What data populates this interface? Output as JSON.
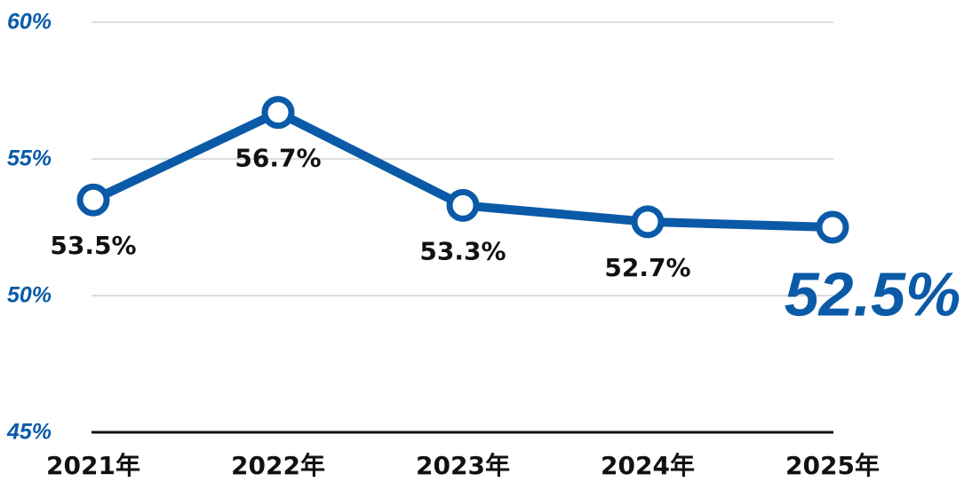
{
  "chart_data": {
    "type": "line",
    "categories": [
      "2021年",
      "2022年",
      "2023年",
      "2024年",
      "2025年"
    ],
    "series": [
      {
        "color": "#0b5aa8",
        "values": [
          53.5,
          56.7,
          53.3,
          52.7,
          52.5
        ],
        "value_labels": [
          "53.5%",
          "56.7%",
          "53.3%",
          "52.7%",
          "52.5%"
        ]
      }
    ],
    "ylim": [
      45,
      60
    ],
    "yticks": [
      {
        "value": 45,
        "label": "45%"
      },
      {
        "value": 50,
        "label": "50%"
      },
      {
        "value": 55,
        "label": "55%"
      },
      {
        "value": 60,
        "label": "60%"
      }
    ],
    "grid": true
  }
}
